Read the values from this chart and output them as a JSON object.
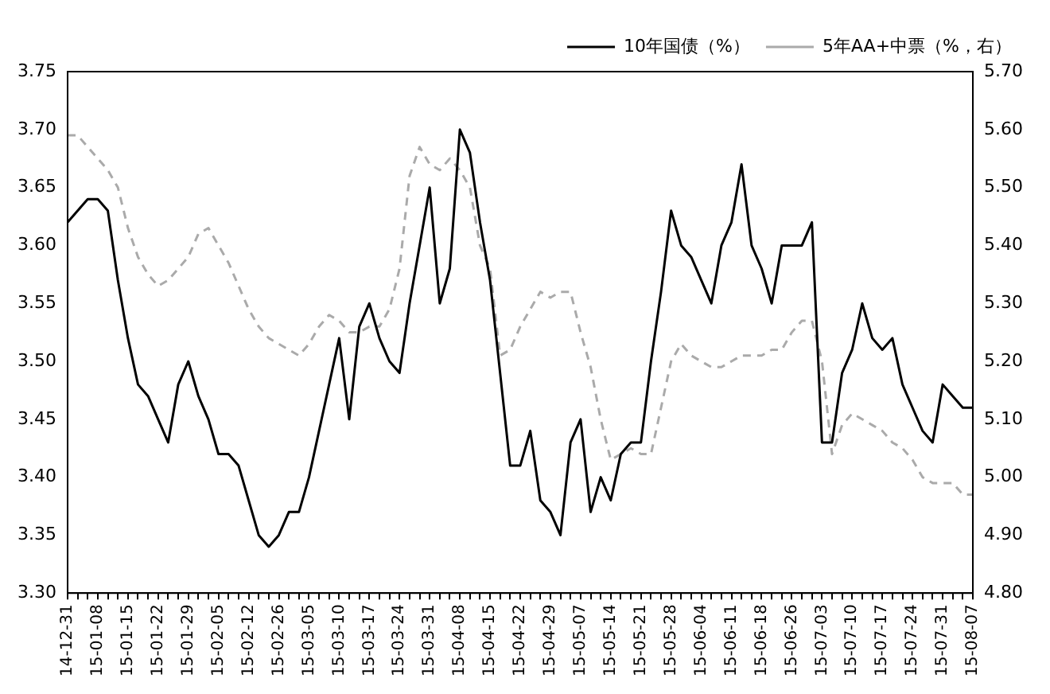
{
  "chart_data": {
    "type": "line",
    "categories": [
      "14-12-31",
      null,
      null,
      "15-01-08",
      null,
      null,
      "15-01-15",
      null,
      null,
      "15-01-22",
      null,
      null,
      "15-01-29",
      null,
      null,
      "15-02-05",
      null,
      null,
      "15-02-12",
      null,
      null,
      "15-02-26",
      null,
      null,
      "15-03-05",
      null,
      null,
      "15-03-10",
      null,
      null,
      "15-03-17",
      null,
      null,
      "15-03-24",
      null,
      null,
      "15-03-31",
      null,
      null,
      "15-04-08",
      null,
      null,
      "15-04-15",
      null,
      null,
      "15-04-22",
      null,
      null,
      "15-04-29",
      null,
      null,
      "15-05-07",
      null,
      null,
      "15-05-14",
      null,
      null,
      "15-05-21",
      null,
      null,
      "15-05-28",
      null,
      null,
      "15-06-04",
      null,
      null,
      "15-06-11",
      null,
      null,
      "15-06-18",
      null,
      null,
      "15-06-26",
      null,
      null,
      "15-07-03",
      null,
      null,
      "15-07-10",
      null,
      null,
      "15-07-17",
      null,
      null,
      "15-07-24",
      null,
      null,
      "15-07-31",
      null,
      null,
      "15-08-07"
    ],
    "series": [
      {
        "name": "10年国债（%）",
        "color": "#000000",
        "line_style": "solid",
        "values": [
          3.62,
          3.63,
          3.64,
          3.64,
          3.63,
          3.57,
          3.52,
          3.48,
          3.47,
          3.45,
          3.43,
          3.48,
          3.5,
          3.47,
          3.45,
          3.42,
          3.42,
          3.41,
          3.38,
          3.35,
          3.34,
          3.35,
          3.37,
          3.37,
          3.4,
          3.44,
          3.48,
          3.52,
          3.45,
          3.53,
          3.55,
          3.52,
          3.5,
          3.49,
          3.55,
          3.6,
          3.65,
          3.55,
          3.58,
          3.7,
          3.68,
          3.62,
          3.57,
          3.49,
          3.41,
          3.41,
          3.44,
          3.38,
          3.37,
          3.35,
          3.43,
          3.45,
          3.37,
          3.4,
          3.38,
          3.42,
          3.43,
          3.43,
          3.5,
          3.56,
          3.63,
          3.6,
          3.59,
          3.57,
          3.55,
          3.6,
          3.62,
          3.67,
          3.6,
          3.58,
          3.55,
          3.6,
          3.6,
          3.6,
          3.62,
          3.43,
          3.43,
          3.49,
          3.51,
          3.55,
          3.52,
          3.51,
          3.52,
          3.48,
          3.46,
          3.44,
          3.43,
          3.48,
          3.47,
          3.46,
          3.46
        ]
      },
      {
        "name": "5年AA+中票（%，右）",
        "color": "#aaaaaa",
        "line_style": "dashed",
        "axis": "y2",
        "values": [
          5.59,
          5.59,
          5.57,
          5.55,
          5.53,
          5.5,
          5.43,
          5.38,
          5.35,
          5.33,
          5.34,
          5.36,
          5.38,
          5.42,
          5.43,
          5.4,
          5.37,
          5.33,
          5.29,
          5.26,
          5.24,
          5.23,
          5.22,
          5.21,
          5.23,
          5.26,
          5.28,
          5.27,
          5.25,
          5.25,
          5.26,
          5.26,
          5.29,
          5.36,
          5.52,
          5.57,
          5.54,
          5.53,
          5.55,
          5.53,
          5.5,
          5.4,
          5.36,
          5.21,
          5.22,
          5.26,
          5.29,
          5.32,
          5.31,
          5.32,
          5.32,
          5.25,
          5.19,
          5.1,
          5.03,
          5.04,
          5.05,
          5.04,
          5.04,
          5.12,
          5.2,
          5.23,
          5.21,
          5.2,
          5.19,
          5.19,
          5.2,
          5.21,
          5.21,
          5.21,
          5.22,
          5.22,
          5.25,
          5.27,
          5.27,
          5.2,
          5.04,
          5.09,
          5.11,
          5.1,
          5.09,
          5.08,
          5.06,
          5.05,
          5.03,
          5.0,
          4.99,
          4.99,
          4.99,
          4.97,
          4.97
        ]
      }
    ],
    "ylim": [
      3.3,
      3.75
    ],
    "yticks": [
      {
        "value": 3.3,
        "label": "3.30"
      },
      {
        "value": 3.35,
        "label": "3.35"
      },
      {
        "value": 3.4,
        "label": "3.40"
      },
      {
        "value": 3.45,
        "label": "3.45"
      },
      {
        "value": 3.5,
        "label": "3.50"
      },
      {
        "value": 3.55,
        "label": "3.55"
      },
      {
        "value": 3.6,
        "label": "3.60"
      },
      {
        "value": 3.65,
        "label": "3.65"
      },
      {
        "value": 3.7,
        "label": "3.70"
      },
      {
        "value": 3.75,
        "label": "3.75"
      }
    ],
    "y2lim": [
      4.8,
      5.7
    ],
    "y2ticks": [
      {
        "value": 4.8,
        "label": "4.80"
      },
      {
        "value": 4.9,
        "label": "4.90"
      },
      {
        "value": 5.0,
        "label": "5.00"
      },
      {
        "value": 5.1,
        "label": "5.10"
      },
      {
        "value": 5.2,
        "label": "5.20"
      },
      {
        "value": 5.3,
        "label": "5.30"
      },
      {
        "value": 5.4,
        "label": "5.40"
      },
      {
        "value": 5.5,
        "label": "5.50"
      },
      {
        "value": 5.6,
        "label": "5.60"
      },
      {
        "value": 5.7,
        "label": "5.70"
      }
    ],
    "grid": false,
    "legend": "top right",
    "marker": "none"
  }
}
